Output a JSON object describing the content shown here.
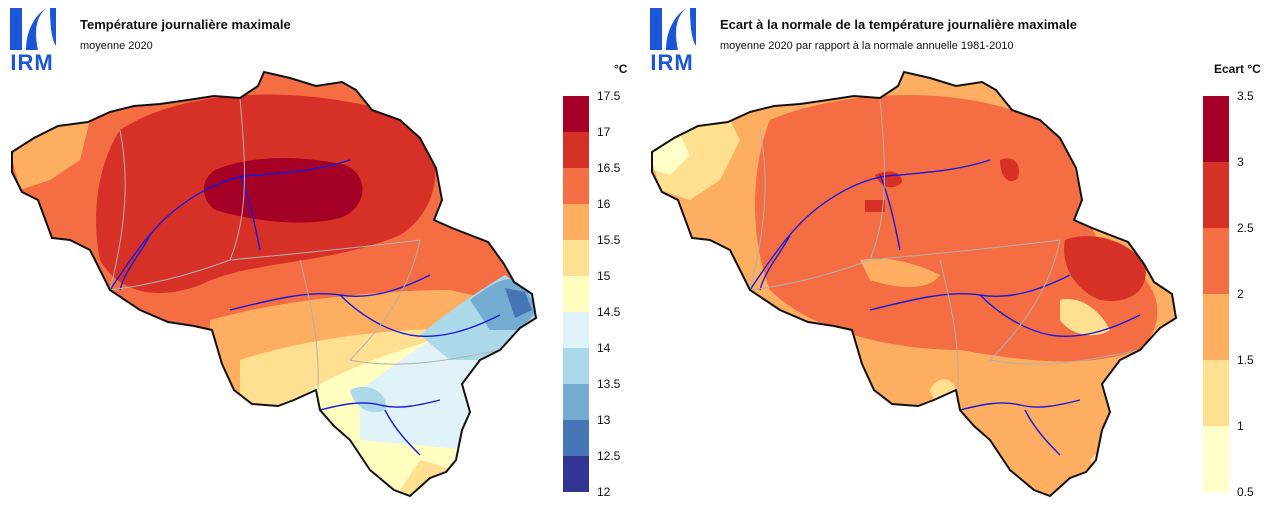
{
  "brand": {
    "logo_text": "IRM"
  },
  "maps": [
    {
      "title": "Température journalière maximale",
      "subtitle": "moyenne 2020",
      "unit": "°C",
      "legend": {
        "ticks": [
          "17.5",
          "17",
          "16.5",
          "16",
          "15.5",
          "15",
          "14.5",
          "14",
          "13.5",
          "13",
          "12.5",
          "12"
        ],
        "colors": [
          "#a50026",
          "#d73027",
          "#f46d43",
          "#fdae61",
          "#fee090",
          "#ffffbf",
          "#e0f3f8",
          "#abd9e9",
          "#74add1",
          "#4575b4",
          "#313695"
        ]
      }
    },
    {
      "title": "Ecart à la normale de la température journalière maximale",
      "subtitle": "moyenne 2020 par rapport à la normale annuelle 1981-2010",
      "unit": "Ecart °C",
      "legend": {
        "ticks": [
          "3.5",
          "3",
          "2.5",
          "2",
          "1.5",
          "1",
          "0.5"
        ],
        "colors": [
          "#a50026",
          "#d73027",
          "#f46d43",
          "#fdae61",
          "#fee090",
          "#ffffc8"
        ]
      }
    }
  ]
}
